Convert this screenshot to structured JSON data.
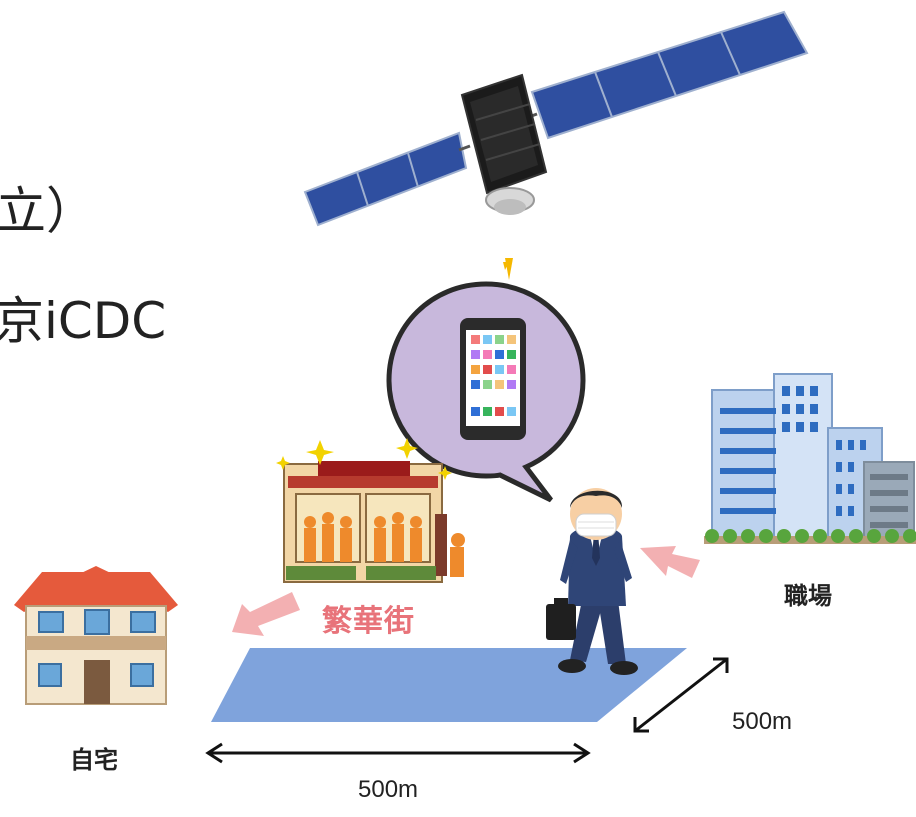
{
  "fragments": {
    "line1_tail": "立）",
    "line2_tail": "京iCDC"
  },
  "labels": {
    "home": "自宅",
    "downtown": "繁華街",
    "workplace": "職場"
  },
  "distances": {
    "width": "500m",
    "depth": "500m"
  },
  "icons": {
    "satellite": "satellite-icon",
    "smartphone": "smartphone-icon",
    "house": "house-icon",
    "shop": "restaurant-icon",
    "office": "office-building-icon",
    "person": "masked-businessman-icon"
  },
  "colors": {
    "area": "#7fa3dc",
    "arrow_pink": "#f3b0b2",
    "downtown_text": "#e8737a",
    "bubble": "#c8b8dc",
    "beam": "#f5b800"
  }
}
